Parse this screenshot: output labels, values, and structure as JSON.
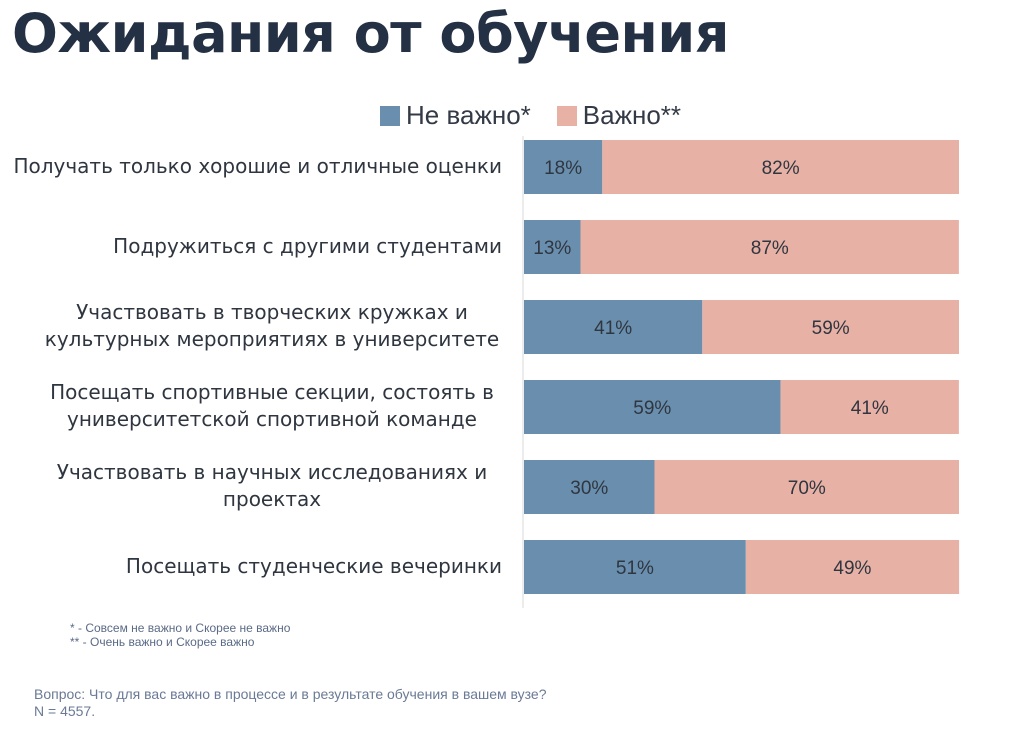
{
  "title": "Ожидания от обучения",
  "colors": {
    "not_important": "#6a8fae",
    "important": "#e8b1a5",
    "axis": "#d9d9d9",
    "bar_text": "#2f3640"
  },
  "chart_data": {
    "type": "bar",
    "orientation": "horizontal",
    "stacked": true,
    "percent": true,
    "legend_position": "top",
    "categories": [
      [
        "Получать только хорошие и отличные оценки"
      ],
      [
        "Подружиться с другими студентами"
      ],
      [
        "Участвовать в творческих кружках и",
        "культурных мероприятиях в университете"
      ],
      [
        "Посещать спортивные секции, состоять в",
        "университетской спортивной команде"
      ],
      [
        "Участвовать в научных исследованиях и",
        "проектах"
      ],
      [
        "Посещать студенческие вечеринки"
      ]
    ],
    "series": [
      {
        "name": "Не важно*",
        "values": [
          18,
          13,
          41,
          59,
          30,
          51
        ],
        "labels": [
          "18%",
          "13%",
          "41%",
          "59%",
          "30%",
          "51%"
        ]
      },
      {
        "name": "Важно**",
        "values": [
          82,
          87,
          59,
          41,
          70,
          49
        ],
        "labels": [
          "82%",
          "87%",
          "59%",
          "41%",
          "70%",
          "49%"
        ]
      }
    ],
    "xlim": [
      0,
      100
    ],
    "grid": false
  },
  "footnotes": [
    "* - Совсем не важно и Скорее не важно",
    "** - Очень важно и Скорее важно"
  ],
  "question": "Вопрос: Что для вас важно в процессе и в результате обучения в вашем вузе?",
  "sample_size": "N = 4557."
}
